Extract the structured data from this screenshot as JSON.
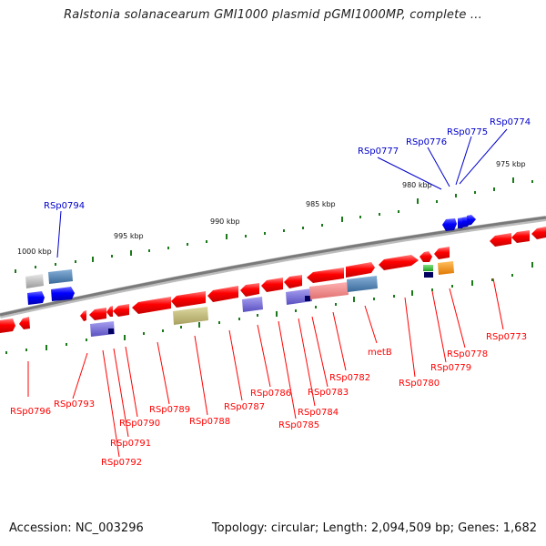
{
  "title": "Ralstonia solanacearum GMI1000 plasmid pGMI1000MP, complete ...",
  "footer": {
    "accession": "Accession: NC_003296",
    "summary": "Topology: circular; Length: 2,094,509 bp; Genes: 1,682"
  },
  "scale_labels": [
    "1000 kbp",
    "995 kbp",
    "990 kbp",
    "985 kbp",
    "980 kbp",
    "975 kbp"
  ],
  "blue_labels": [
    "RSp0794",
    "RSp0777",
    "RSp0776",
    "RSp0775",
    "RSp0774"
  ],
  "red_labels": [
    "RSp0796",
    "RSp0793",
    "RSp0792",
    "RSp0791",
    "RSp0790",
    "RSp0789",
    "RSp0788",
    "RSp0787",
    "RSp0786",
    "RSp0785",
    "RSp0784",
    "RSp0783",
    "RSp0782",
    "metB",
    "RSp0780",
    "RSp0779",
    "RSp0778",
    "RSp0773"
  ],
  "colors": {
    "forward_gene": "#ff0000",
    "reverse_gene": "#0000ff",
    "backbone": "#808080",
    "tick": "#1a7a1a"
  }
}
